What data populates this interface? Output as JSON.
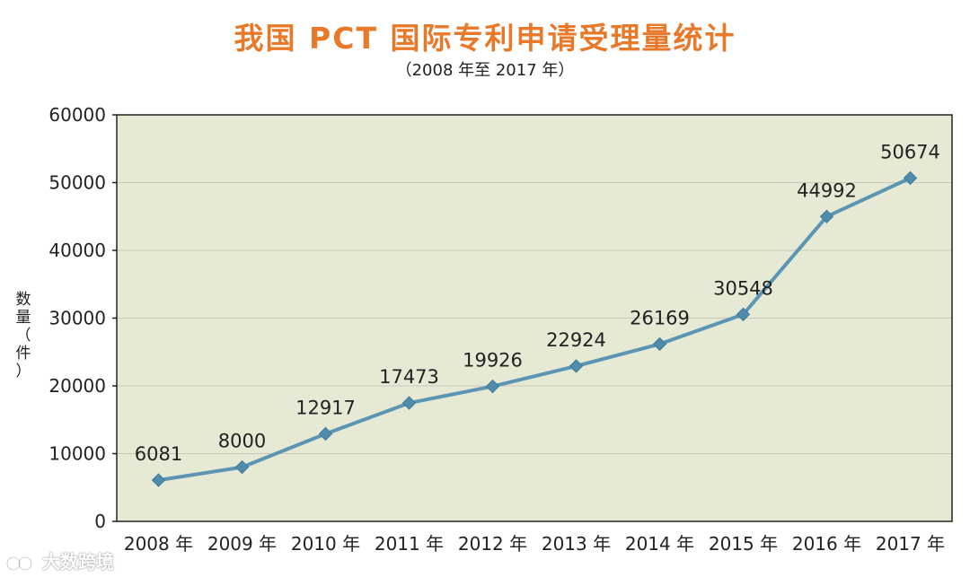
{
  "header": {
    "title": "我国 PCT 国际专利申请受理量统计",
    "subtitle": "（2008 年至 2017 年）"
  },
  "axis": {
    "ylabel_chars": [
      "数",
      "量",
      "（",
      "件",
      "）"
    ]
  },
  "watermark": {
    "text": "大数跨境",
    "icon": "logo-icon"
  },
  "colors": {
    "title": "#e8782a",
    "plot_bg": "#e6e9d4",
    "line": "#5b95b3",
    "marker": "#4f8bab",
    "grid": "#c9c9b9"
  },
  "chart_data": {
    "type": "line",
    "categories": [
      "2008 年",
      "2009 年",
      "2010 年",
      "2011 年",
      "2012 年",
      "2013 年",
      "2014 年",
      "2015 年",
      "2016 年",
      "2017 年"
    ],
    "values": [
      6081,
      8000,
      12917,
      17473,
      19926,
      22924,
      26169,
      30548,
      44992,
      50674
    ],
    "data_labels": [
      "6081",
      "8000",
      "12917",
      "17473",
      "19926",
      "22924",
      "26169",
      "30548",
      "44992",
      "50674"
    ],
    "yticks": [
      0,
      10000,
      20000,
      30000,
      40000,
      50000,
      60000
    ],
    "ytick_labels": [
      "0",
      "10000",
      "20000",
      "30000",
      "40000",
      "50000",
      "60000"
    ],
    "ylim": [
      0,
      60000
    ],
    "ylabel": "数量（件）",
    "grid": true,
    "legend": "none"
  }
}
